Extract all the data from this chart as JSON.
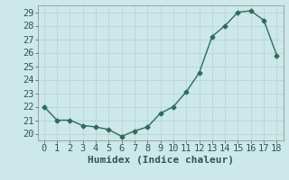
{
  "x": [
    0,
    1,
    2,
    3,
    4,
    5,
    6,
    7,
    8,
    9,
    10,
    11,
    12,
    13,
    14,
    15,
    16,
    17,
    18
  ],
  "y": [
    22.0,
    21.0,
    21.0,
    20.6,
    20.5,
    20.3,
    19.8,
    20.2,
    20.5,
    21.5,
    22.0,
    23.1,
    24.5,
    27.2,
    28.0,
    29.0,
    29.1,
    28.4,
    25.8
  ],
  "line_color": "#2e6b5e",
  "marker": "D",
  "marker_size": 2.5,
  "background_color": "#cce8e8",
  "grid_major_color": "#b8d4d4",
  "grid_minor_color": "#d0e4e4",
  "xlabel": "Humidex (Indice chaleur)",
  "ylim": [
    19.5,
    29.5
  ],
  "xlim": [
    -0.5,
    18.5
  ],
  "yticks": [
    20,
    21,
    22,
    23,
    24,
    25,
    26,
    27,
    28,
    29
  ],
  "xticks": [
    0,
    1,
    2,
    3,
    4,
    5,
    6,
    7,
    8,
    9,
    10,
    11,
    12,
    13,
    14,
    15,
    16,
    17,
    18
  ],
  "label_fontsize": 8,
  "tick_fontsize": 7.5
}
